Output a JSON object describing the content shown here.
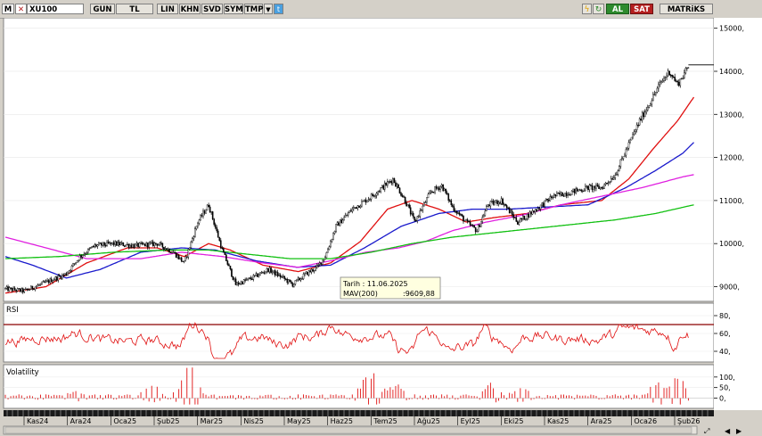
{
  "toolbar": {
    "m_logo": "M",
    "symbol": "XU100",
    "gun": "GUN",
    "tl": "TL",
    "lin": "LIN",
    "khn": "KHN",
    "svd": "SVD",
    "sym": "SYM",
    "tmp": "TMP",
    "al": "AL",
    "sat": "SAT",
    "matriks": "MATRiKS",
    "chevron": "chevron-down-icon",
    "twitter": "twitter-icon",
    "lightning": "lightning-icon",
    "refresh": "refresh-icon",
    "colors": {
      "al": "#2e8b2e",
      "sat": "#b52020"
    }
  },
  "chart_data": [
    {
      "type": "candlestick",
      "title": "",
      "y_ticks": [
        9000,
        10000,
        11000,
        12000,
        13000,
        14000,
        15000
      ],
      "y_tick_labels": [
        "9000,",
        "10000,",
        "11000,",
        "12000,",
        "13000,",
        "14000,",
        "15000,"
      ],
      "ylim": [
        8700,
        15200
      ],
      "x_labels": [
        "Kas24",
        "Ara24",
        "Oca25",
        "Şub25",
        "Mar25",
        "Nis25",
        "May25",
        "Haz25",
        "Tem25",
        "Ağu25",
        "Eyl25",
        "Eki25",
        "Kas25",
        "Ara25",
        "Oca26",
        "Şub26"
      ],
      "close_anchors": [
        [
          0,
          8950
        ],
        [
          14,
          8900
        ],
        [
          30,
          9100
        ],
        [
          45,
          9300
        ],
        [
          55,
          9700
        ],
        [
          66,
          9950
        ],
        [
          80,
          10000
        ],
        [
          96,
          9950
        ],
        [
          112,
          10000
        ],
        [
          124,
          9800
        ],
        [
          132,
          9550
        ],
        [
          142,
          10500
        ],
        [
          150,
          10900
        ],
        [
          160,
          9850
        ],
        [
          170,
          9050
        ],
        [
          182,
          9200
        ],
        [
          194,
          9400
        ],
        [
          205,
          9200
        ],
        [
          212,
          9050
        ],
        [
          222,
          9300
        ],
        [
          230,
          9450
        ],
        [
          236,
          9700
        ],
        [
          244,
          10400
        ],
        [
          256,
          10800
        ],
        [
          268,
          11050
        ],
        [
          278,
          11300
        ],
        [
          286,
          11500
        ],
        [
          295,
          11000
        ],
        [
          302,
          10500
        ],
        [
          307,
          10800
        ],
        [
          314,
          11200
        ],
        [
          322,
          11350
        ],
        [
          330,
          10850
        ],
        [
          340,
          10500
        ],
        [
          348,
          10300
        ],
        [
          356,
          10900
        ],
        [
          366,
          11000
        ],
        [
          378,
          10500
        ],
        [
          392,
          10800
        ],
        [
          404,
          11100
        ],
        [
          418,
          11200
        ],
        [
          430,
          11300
        ],
        [
          440,
          11300
        ],
        [
          450,
          11600
        ],
        [
          460,
          12300
        ],
        [
          468,
          12850
        ],
        [
          476,
          13300
        ],
        [
          484,
          13750
        ],
        [
          490,
          14000
        ],
        [
          496,
          13700
        ],
        [
          504,
          14100
        ]
      ],
      "ma_series": [
        {
          "color": "#e01010",
          "anchors": [
            [
              0,
              8850
            ],
            [
              30,
              9000
            ],
            [
              60,
              9550
            ],
            [
              90,
              9900
            ],
            [
              112,
              9900
            ],
            [
              132,
              9700
            ],
            [
              150,
              10000
            ],
            [
              166,
              9850
            ],
            [
              190,
              9500
            ],
            [
              216,
              9350
            ],
            [
              240,
              9550
            ],
            [
              262,
              10050
            ],
            [
              282,
              10800
            ],
            [
              300,
              11000
            ],
            [
              320,
              10800
            ],
            [
              340,
              10500
            ],
            [
              360,
              10600
            ],
            [
              385,
              10700
            ],
            [
              410,
              10900
            ],
            [
              440,
              11000
            ],
            [
              460,
              11500
            ],
            [
              478,
              12200
            ],
            [
              496,
              12850
            ],
            [
              508,
              13400
            ]
          ]
        },
        {
          "color": "#1a1acc",
          "anchors": [
            [
              0,
              9700
            ],
            [
              20,
              9500
            ],
            [
              45,
              9200
            ],
            [
              70,
              9400
            ],
            [
              100,
              9800
            ],
            [
              130,
              9900
            ],
            [
              155,
              9850
            ],
            [
              185,
              9600
            ],
            [
              215,
              9450
            ],
            [
              240,
              9500
            ],
            [
              265,
              9900
            ],
            [
              292,
              10400
            ],
            [
              320,
              10700
            ],
            [
              345,
              10800
            ],
            [
              372,
              10800
            ],
            [
              400,
              10850
            ],
            [
              430,
              10900
            ],
            [
              458,
              11300
            ],
            [
              480,
              11700
            ],
            [
              500,
              12100
            ],
            [
              508,
              12350
            ]
          ]
        },
        {
          "color": "#e020e0",
          "anchors": [
            [
              0,
              10150
            ],
            [
              30,
              9900
            ],
            [
              60,
              9650
            ],
            [
              100,
              9650
            ],
            [
              130,
              9800
            ],
            [
              160,
              9700
            ],
            [
              190,
              9550
            ],
            [
              216,
              9450
            ],
            [
              240,
              9600
            ],
            [
              266,
              9800
            ],
            [
              290,
              9900
            ],
            [
              310,
              10050
            ],
            [
              330,
              10300
            ],
            [
              355,
              10500
            ],
            [
              380,
              10650
            ],
            [
              410,
              10900
            ],
            [
              440,
              11100
            ],
            [
              470,
              11300
            ],
            [
              500,
              11550
            ],
            [
              508,
              11600
            ]
          ]
        },
        {
          "color": "#10c010",
          "anchors": [
            [
              0,
              9650
            ],
            [
              40,
              9700
            ],
            [
              80,
              9800
            ],
            [
              120,
              9850
            ],
            [
              150,
              9850
            ],
            [
              180,
              9750
            ],
            [
              210,
              9650
            ],
            [
              240,
              9650
            ],
            [
              270,
              9800
            ],
            [
              300,
              10000
            ],
            [
              330,
              10150
            ],
            [
              360,
              10250
            ],
            [
              390,
              10350
            ],
            [
              420,
              10450
            ],
            [
              450,
              10550
            ],
            [
              480,
              10700
            ],
            [
              508,
              10900
            ]
          ]
        }
      ],
      "last_price": 14150,
      "tooltip": {
        "line1": "Tarih : 11.06.2025",
        "line2_label": "MAV(200)",
        "line2_value": ":9609,88"
      }
    },
    {
      "type": "line",
      "title": "RSI",
      "y_ticks": [
        40,
        60,
        80
      ],
      "y_tick_labels": [
        "40,",
        "60,",
        "80,"
      ],
      "ylim": [
        30,
        92
      ],
      "reference_line": 70,
      "colors": {
        "line": "#e01010",
        "ref": "#8b0000"
      }
    },
    {
      "type": "bar",
      "title": "Volatility",
      "y_ticks": [
        0,
        50,
        100
      ],
      "y_tick_labels": [
        "0,",
        "50,",
        "100,"
      ],
      "ylim": [
        -40,
        150
      ],
      "bursts": [
        [
          52,
          0.25
        ],
        [
          108,
          0.5
        ],
        [
          132,
          0.75
        ],
        [
          138,
          1.0
        ],
        [
          266,
          0.8
        ],
        [
          272,
          0.7
        ],
        [
          288,
          0.55
        ],
        [
          358,
          0.45
        ],
        [
          380,
          0.4
        ],
        [
          482,
          0.7
        ],
        [
          496,
          0.85
        ]
      ],
      "colors": {
        "bar": "#e01010"
      }
    }
  ]
}
